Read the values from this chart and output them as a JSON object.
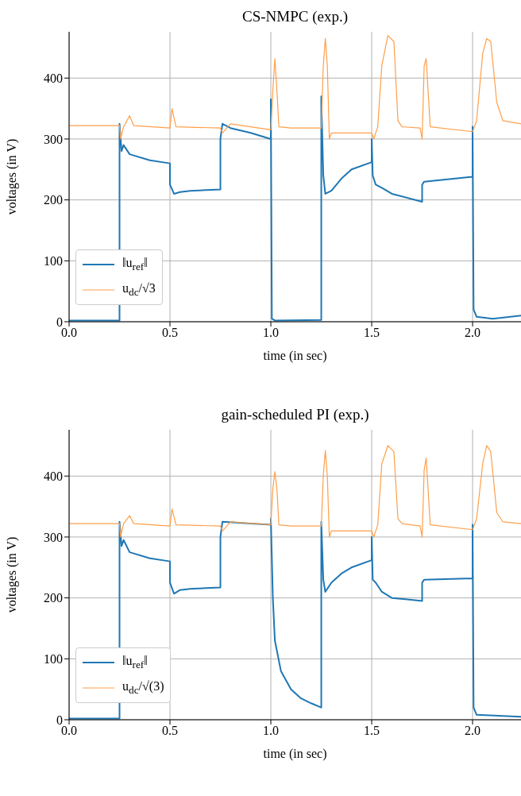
{
  "chart_data": [
    {
      "type": "line",
      "title": "CS-NMPC (exp.)",
      "xlabel": "time (in sec)",
      "ylabel": "voltages (in V)",
      "xlim": [
        0,
        2.24
      ],
      "xticks": [
        {
          "value": 0,
          "label": "0.0"
        },
        {
          "value": 0.5,
          "label": "0.5"
        },
        {
          "value": 1,
          "label": "1.0"
        },
        {
          "value": 1.5,
          "label": "1.5"
        },
        {
          "value": 2,
          "label": "2.0"
        }
      ],
      "ylim": [
        0,
        476
      ],
      "yticks": [
        0,
        100,
        200,
        300,
        400
      ],
      "grid": true,
      "legend": "bottom left",
      "series": [
        {
          "name": "‖u$_{ref}$‖",
          "color": "#1f77b4",
          "x": [
            0,
            0.25,
            0.25,
            0.26,
            0.27,
            0.3,
            0.4,
            0.5,
            0.5,
            0.52,
            0.55,
            0.6,
            0.75,
            0.75,
            0.76,
            0.8,
            0.9,
            1.0,
            1.0,
            1.005,
            1.02,
            1.25,
            1.25,
            1.26,
            1.27,
            1.3,
            1.35,
            1.4,
            1.5,
            1.5,
            1.505,
            1.52,
            1.55,
            1.6,
            1.75,
            1.75,
            1.76,
            2.0,
            2.0,
            2.005,
            2.02,
            2.1,
            2.24
          ],
          "values": [
            2,
            2,
            325,
            280,
            290,
            275,
            265,
            260,
            225,
            210,
            213,
            215,
            217,
            300,
            325,
            318,
            310,
            300,
            365,
            5,
            2,
            3,
            370,
            240,
            210,
            215,
            235,
            250,
            262,
            300,
            240,
            225,
            220,
            210,
            197,
            225,
            230,
            238,
            320,
            20,
            8,
            5,
            10
          ]
        },
        {
          "name": "u$_{dc}$/√3",
          "color": "#ff9f4a",
          "x": [
            0,
            0.25,
            0.255,
            0.27,
            0.3,
            0.32,
            0.5,
            0.51,
            0.53,
            0.75,
            0.76,
            0.8,
            1.0,
            1.01,
            1.02,
            1.03,
            1.04,
            1.1,
            1.25,
            1.26,
            1.27,
            1.28,
            1.29,
            1.3,
            1.5,
            1.51,
            1.53,
            1.55,
            1.58,
            1.61,
            1.63,
            1.65,
            1.74,
            1.75,
            1.76,
            1.77,
            1.79,
            2.0,
            2.02,
            2.05,
            2.07,
            2.09,
            2.12,
            2.15,
            2.24
          ],
          "values": [
            322,
            322,
            300,
            320,
            338,
            322,
            318,
            350,
            320,
            318,
            310,
            325,
            315,
            380,
            432,
            380,
            320,
            318,
            318,
            420,
            465,
            420,
            300,
            310,
            310,
            300,
            320,
            420,
            470,
            460,
            330,
            320,
            318,
            300,
            420,
            432,
            320,
            312,
            330,
            440,
            465,
            460,
            360,
            330,
            325
          ]
        }
      ]
    },
    {
      "type": "line",
      "title": "gain-scheduled PI (exp.)",
      "xlabel": "time (in sec)",
      "ylabel": "voltages (in V)",
      "xlim": [
        0,
        2.24
      ],
      "xticks": [
        {
          "value": 0,
          "label": "0.0"
        },
        {
          "value": 0.5,
          "label": "0.5"
        },
        {
          "value": 1,
          "label": "1.0"
        },
        {
          "value": 1.5,
          "label": "1.5"
        },
        {
          "value": 2,
          "label": "2.0"
        }
      ],
      "ylim": [
        0,
        476
      ],
      "yticks": [
        0,
        100,
        200,
        300,
        400
      ],
      "grid": true,
      "legend": "bottom left",
      "series": [
        {
          "name": "‖u$_{ref}$‖",
          "color": "#1f77b4",
          "x": [
            0,
            0.25,
            0.25,
            0.26,
            0.27,
            0.3,
            0.4,
            0.5,
            0.5,
            0.52,
            0.55,
            0.6,
            0.75,
            0.75,
            0.76,
            0.9,
            1.0,
            1.0,
            1.01,
            1.02,
            1.05,
            1.1,
            1.15,
            1.2,
            1.25,
            1.25,
            1.26,
            1.27,
            1.3,
            1.35,
            1.4,
            1.5,
            1.5,
            1.505,
            1.52,
            1.55,
            1.6,
            1.75,
            1.75,
            1.76,
            2.0,
            2.0,
            2.005,
            2.02,
            2.24
          ],
          "values": [
            2,
            2,
            325,
            285,
            295,
            275,
            265,
            260,
            225,
            207,
            213,
            215,
            217,
            300,
            325,
            322,
            320,
            330,
            200,
            130,
            80,
            50,
            35,
            27,
            20,
            325,
            230,
            210,
            225,
            240,
            250,
            262,
            300,
            230,
            225,
            210,
            200,
            195,
            225,
            230,
            232,
            320,
            20,
            8,
            5
          ]
        },
        {
          "name": "u$_{dc}$/√(3)",
          "color": "#ff9f4a",
          "x": [
            0,
            0.25,
            0.255,
            0.27,
            0.3,
            0.32,
            0.5,
            0.51,
            0.53,
            0.75,
            0.76,
            0.8,
            1.0,
            1.01,
            1.02,
            1.03,
            1.04,
            1.1,
            1.25,
            1.26,
            1.27,
            1.28,
            1.29,
            1.3,
            1.5,
            1.51,
            1.53,
            1.55,
            1.58,
            1.61,
            1.63,
            1.65,
            1.74,
            1.75,
            1.76,
            1.77,
            1.79,
            2.0,
            2.02,
            2.05,
            2.07,
            2.09,
            2.12,
            2.15,
            2.24
          ],
          "values": [
            322,
            322,
            300,
            322,
            335,
            322,
            318,
            346,
            320,
            318,
            310,
            325,
            320,
            380,
            407,
            380,
            320,
            318,
            318,
            400,
            442,
            400,
            300,
            310,
            310,
            300,
            320,
            420,
            450,
            440,
            330,
            322,
            318,
            300,
            410,
            430,
            320,
            312,
            330,
            420,
            450,
            440,
            340,
            325,
            322
          ]
        }
      ]
    }
  ]
}
